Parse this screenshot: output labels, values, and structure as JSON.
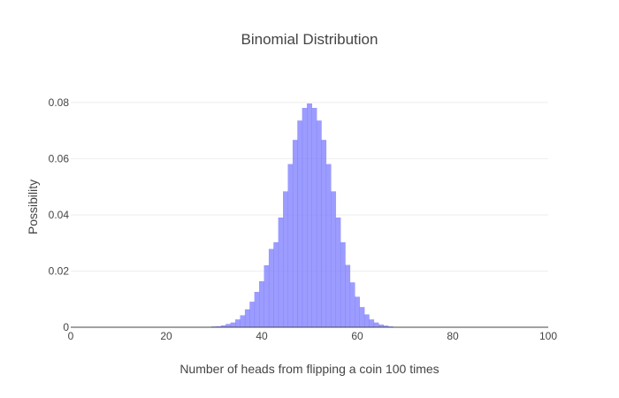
{
  "chart_data": {
    "type": "bar",
    "title": "Binomial Distribution",
    "xlabel": "Number of heads from flipping a coin 100 times",
    "ylabel": "Possibility",
    "xlim": [
      0,
      100
    ],
    "ylim": [
      0,
      0.085
    ],
    "x_ticks": [
      0,
      20,
      40,
      60,
      80,
      100
    ],
    "x_tick_labels": [
      "0",
      "20",
      "40",
      "60",
      "80",
      "100"
    ],
    "y_ticks": [
      0,
      0.02,
      0.04,
      0.06,
      0.08
    ],
    "y_tick_labels": [
      "0",
      "0.02",
      "0.04",
      "0.06",
      "0.08"
    ],
    "grid": true,
    "legend": "none",
    "bar_color": "#8080ff",
    "x": [
      0,
      1,
      2,
      3,
      4,
      5,
      6,
      7,
      8,
      9,
      10,
      11,
      12,
      13,
      14,
      15,
      16,
      17,
      18,
      19,
      20,
      21,
      22,
      23,
      24,
      25,
      26,
      27,
      28,
      29,
      30,
      31,
      32,
      33,
      34,
      35,
      36,
      37,
      38,
      39,
      40,
      41,
      42,
      43,
      44,
      45,
      46,
      47,
      48,
      49,
      50,
      51,
      52,
      53,
      54,
      55,
      56,
      57,
      58,
      59,
      60,
      61,
      62,
      63,
      64,
      65,
      66,
      67,
      68,
      69,
      70,
      71,
      72,
      73,
      74,
      75,
      76,
      77,
      78,
      79,
      80,
      81,
      82,
      83,
      84,
      85,
      86,
      87,
      88,
      89,
      90,
      91,
      92,
      93,
      94,
      95,
      96,
      97,
      98,
      99,
      100
    ],
    "values": [
      0,
      0,
      0,
      0,
      0,
      0,
      0,
      0,
      0,
      0,
      0,
      0,
      0,
      0,
      0,
      0,
      0,
      0,
      0,
      0,
      0,
      0,
      0,
      0,
      0,
      0,
      0,
      0,
      0,
      0.0001,
      0.0002,
      0.0003,
      0.0006,
      0.0011,
      0.0016,
      0.0027,
      0.0042,
      0.0063,
      0.009,
      0.0125,
      0.0163,
      0.022,
      0.0278,
      0.0302,
      0.039,
      0.0483,
      0.058,
      0.0666,
      0.0735,
      0.078,
      0.0796,
      0.078,
      0.0735,
      0.0666,
      0.058,
      0.0483,
      0.039,
      0.0302,
      0.0221,
      0.0159,
      0.0108,
      0.0071,
      0.0045,
      0.0027,
      0.0016,
      0.0009,
      0.0005,
      0.0002,
      0.0001,
      0.0001,
      0,
      0,
      0,
      0,
      0,
      0,
      0,
      0,
      0,
      0,
      0,
      0,
      0,
      0,
      0,
      0,
      0,
      0,
      0,
      0,
      0,
      0,
      0,
      0,
      0,
      0,
      0,
      0,
      0,
      0,
      0
    ]
  }
}
